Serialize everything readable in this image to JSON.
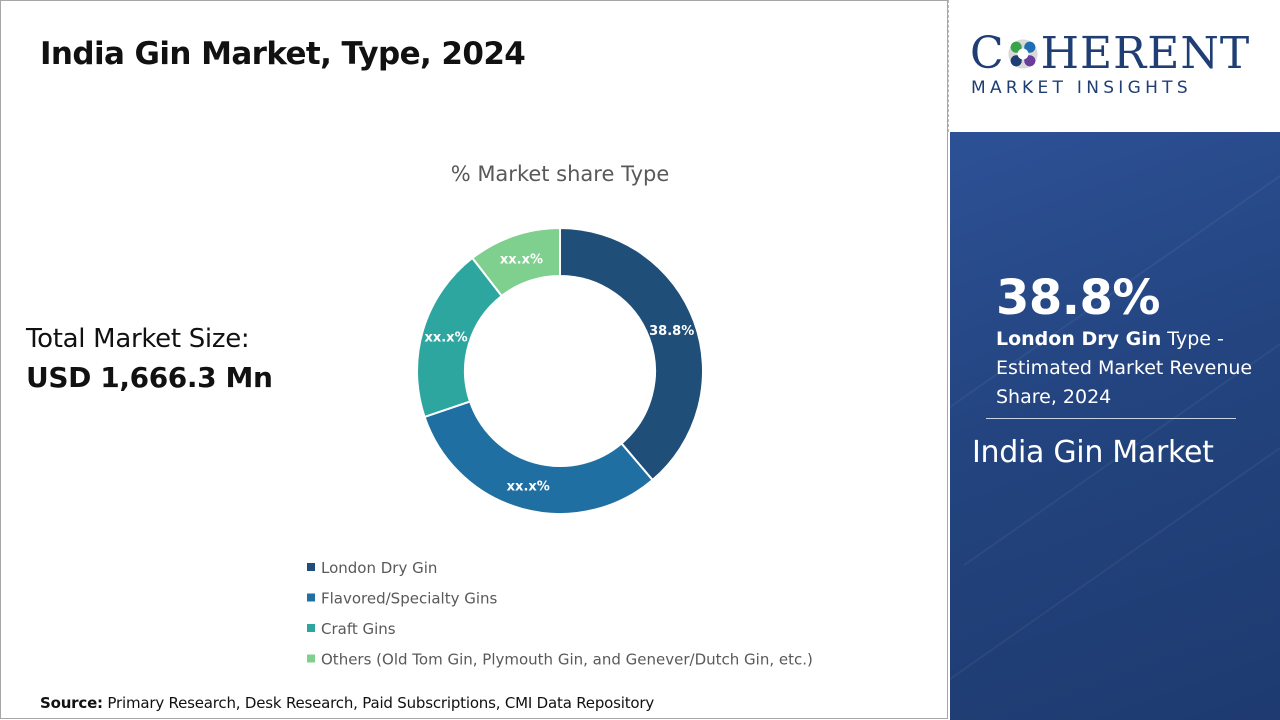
{
  "page": {
    "title": "India Gin Market, Type, 2024",
    "total_label": "Total Market Size:",
    "total_value": "USD 1,666.3 Mn",
    "source_label": "Source:",
    "source_text": " Primary Research, Desk Research, Paid Subscriptions, CMI Data Repository"
  },
  "logo": {
    "main_pre": "C",
    "main_post": "HERENT",
    "sub": "MARKET INSIGHTS"
  },
  "side": {
    "highlight_value": "38.8%",
    "highlight_segment": "London Dry Gin",
    "highlight_desc": " Type - Estimated Market Revenue Share, 2024",
    "market_name": "India Gin Market"
  },
  "chart_data": {
    "type": "pie",
    "subtype": "donut",
    "title": "% Market share Type",
    "categories": [
      "London Dry Gin",
      "Flavored/Specialty Gins",
      "Craft Gins",
      "Others (Old Tom Gin, Plymouth Gin, and Genever/Dutch Gin, etc.)"
    ],
    "values": [
      38.8,
      31.0,
      19.7,
      10.5
    ],
    "labels": [
      "38.8%",
      "xx.x%",
      "xx.x%",
      "xx.x%"
    ],
    "colors": [
      "#1f4e79",
      "#1f6fa2",
      "#2ea6a0",
      "#7fd08f"
    ],
    "legend_position": "bottom"
  }
}
